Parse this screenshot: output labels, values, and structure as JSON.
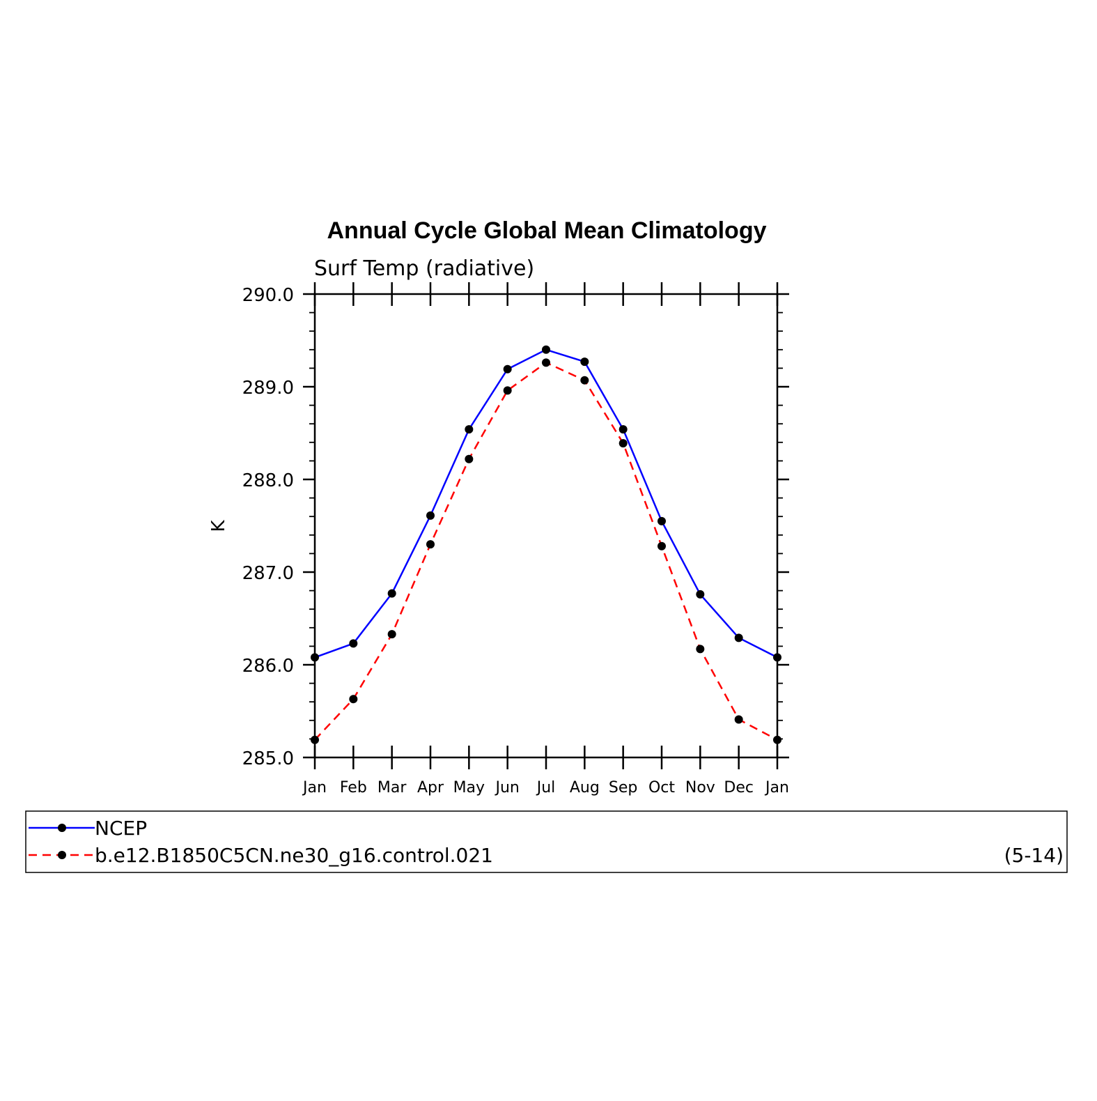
{
  "chart_data": {
    "type": "line",
    "title": "Annual Cycle Global Mean Climatology",
    "subtitle": "Surf Temp (radiative)",
    "xlabel": "",
    "ylabel": "K",
    "categories": [
      "Jan",
      "Feb",
      "Mar",
      "Apr",
      "May",
      "Jun",
      "Jul",
      "Aug",
      "Sep",
      "Oct",
      "Nov",
      "Dec",
      "Jan"
    ],
    "ylim": [
      285.0,
      290.0
    ],
    "yticks": [
      "285.0",
      "286.0",
      "287.0",
      "288.0",
      "289.0",
      "290.0"
    ],
    "grid": false,
    "legend_position": "bottom",
    "series": [
      {
        "name": "NCEP",
        "color": "#0000ff",
        "line_style": "solid",
        "marker": "circle",
        "values": [
          286.08,
          286.23,
          286.77,
          287.61,
          288.54,
          289.19,
          289.4,
          289.27,
          288.54,
          287.55,
          286.76,
          286.29,
          286.08
        ]
      },
      {
        "name": "b.e12.B1850C5CN.ne30_g16.control.021",
        "color": "#ff0000",
        "line_style": "dashed",
        "marker": "circle",
        "values": [
          285.19,
          285.63,
          286.33,
          287.3,
          288.22,
          288.96,
          289.26,
          289.07,
          288.39,
          287.28,
          286.17,
          285.41,
          285.19
        ]
      }
    ],
    "legend_note": "(5-14)"
  }
}
